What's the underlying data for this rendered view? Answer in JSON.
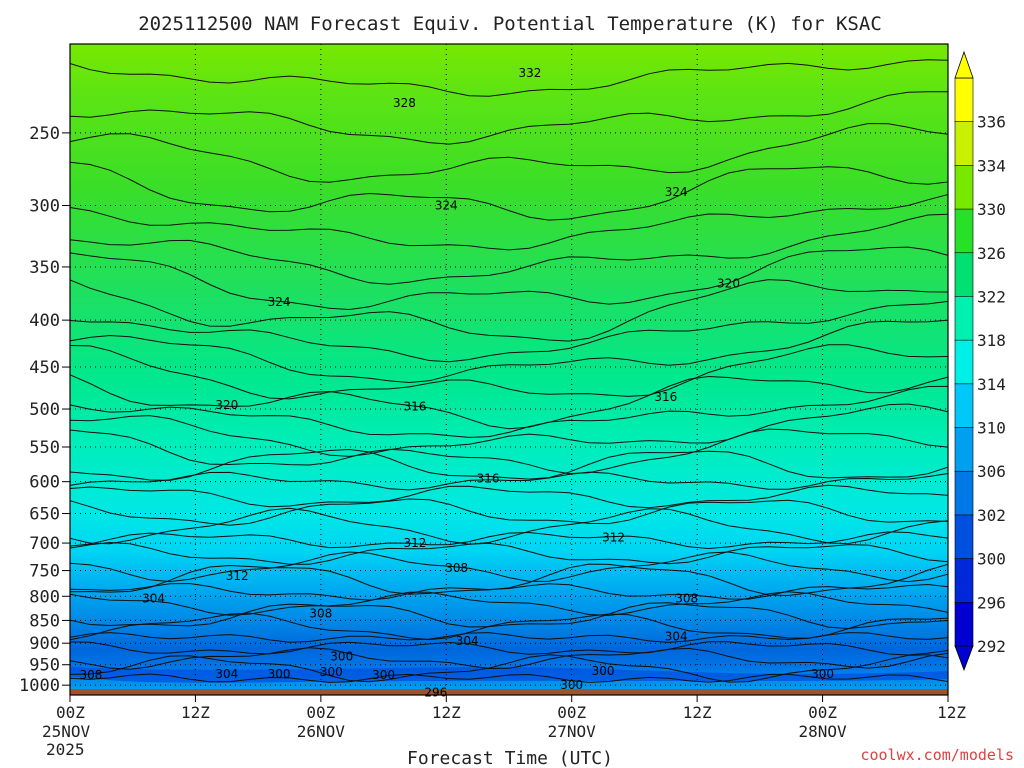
{
  "chart_data": {
    "type": "heatmap",
    "title": "2025112500 NAM Forecast Equiv. Potential Temperature (K) for KSAC",
    "xlabel": "Forecast Time (UTC)",
    "ylabel": "",
    "watermark": "coolwx.com/models",
    "x_ticks": [
      {
        "label": "00Z",
        "sub": "25NOV",
        "sub2": "2025"
      },
      {
        "label": "12Z",
        "sub": "",
        "sub2": ""
      },
      {
        "label": "00Z",
        "sub": "26NOV",
        "sub2": ""
      },
      {
        "label": "12Z",
        "sub": "",
        "sub2": ""
      },
      {
        "label": "00Z",
        "sub": "27NOV",
        "sub2": ""
      },
      {
        "label": "12Z",
        "sub": "",
        "sub2": ""
      },
      {
        "label": "00Z",
        "sub": "28NOV",
        "sub2": ""
      },
      {
        "label": "12Z",
        "sub": "",
        "sub2": ""
      }
    ],
    "x_hours": [
      0,
      12,
      24,
      36,
      48,
      60,
      72,
      84
    ],
    "y_ticks": [
      "250",
      "300",
      "350",
      "400",
      "450",
      "500",
      "550",
      "600",
      "650",
      "700",
      "750",
      "800",
      "850",
      "900",
      "950",
      "1000"
    ],
    "y_levels": [
      250,
      300,
      350,
      400,
      450,
      500,
      550,
      600,
      650,
      700,
      750,
      800,
      850,
      900,
      950,
      1000
    ],
    "ylim": [
      200,
      1025
    ],
    "log_pressure_axis": true,
    "colorbar": {
      "levels": [
        "336",
        "334",
        "330",
        "326",
        "322",
        "318",
        "314",
        "310",
        "306",
        "302",
        "300",
        "296",
        "292"
      ],
      "colors": [
        "#ffff00",
        "#c8f000",
        "#78e800",
        "#28e028",
        "#00e070",
        "#00f0b0",
        "#00f0e8",
        "#00c8f8",
        "#00a0f0",
        "#0078e8",
        "#0050e0",
        "#0028d8",
        "#0000d0"
      ]
    },
    "profile_by_pressure": [
      {
        "p": 200,
        "theta_e": 330
      },
      {
        "p": 300,
        "theta_e": 324
      },
      {
        "p": 400,
        "theta_e": 321
      },
      {
        "p": 500,
        "theta_e": 316
      },
      {
        "p": 600,
        "theta_e": 315
      },
      {
        "p": 700,
        "theta_e": 312
      },
      {
        "p": 800,
        "theta_e": 307
      },
      {
        "p": 900,
        "theta_e": 302
      },
      {
        "p": 975,
        "theta_e": 299
      },
      {
        "p": 1010,
        "theta_e": 304
      }
    ],
    "contour_labels": [
      {
        "text": "332",
        "hour": 44,
        "p": 215
      },
      {
        "text": "328",
        "hour": 32,
        "p": 232
      },
      {
        "text": "324",
        "hour": 36,
        "p": 300
      },
      {
        "text": "324",
        "hour": 58,
        "p": 290
      },
      {
        "text": "324",
        "hour": 20,
        "p": 382
      },
      {
        "text": "320",
        "hour": 63,
        "p": 365
      },
      {
        "text": "320",
        "hour": 15,
        "p": 495
      },
      {
        "text": "316",
        "hour": 33,
        "p": 497
      },
      {
        "text": "316",
        "hour": 57,
        "p": 485
      },
      {
        "text": "316",
        "hour": 40,
        "p": 595
      },
      {
        "text": "312",
        "hour": 33,
        "p": 700
      },
      {
        "text": "312",
        "hour": 52,
        "p": 690
      },
      {
        "text": "312",
        "hour": 16,
        "p": 760
      },
      {
        "text": "308",
        "hour": 37,
        "p": 745
      },
      {
        "text": "308",
        "hour": 24,
        "p": 835
      },
      {
        "text": "308",
        "hour": 59,
        "p": 805
      },
      {
        "text": "304",
        "hour": 8,
        "p": 805
      },
      {
        "text": "304",
        "hour": 38,
        "p": 895
      },
      {
        "text": "304",
        "hour": 58,
        "p": 885
      },
      {
        "text": "308",
        "hour": 2,
        "p": 975
      },
      {
        "text": "304",
        "hour": 15,
        "p": 972
      },
      {
        "text": "300",
        "hour": 20,
        "p": 972
      },
      {
        "text": "300",
        "hour": 26,
        "p": 930
      },
      {
        "text": "300",
        "hour": 25,
        "p": 968
      },
      {
        "text": "300",
        "hour": 30,
        "p": 975
      },
      {
        "text": "300",
        "hour": 48,
        "p": 1000
      },
      {
        "text": "300",
        "hour": 51,
        "p": 965
      },
      {
        "text": "300",
        "hour": 72,
        "p": 972
      },
      {
        "text": "296",
        "hour": 35,
        "p": 1018
      }
    ]
  }
}
